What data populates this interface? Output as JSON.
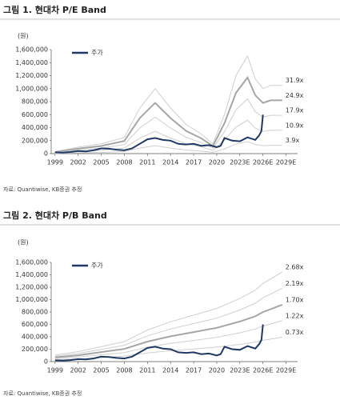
{
  "chart_data": [
    {
      "type": "line",
      "title": "그림 1. 현대차 P/E Band",
      "y_label": "(원)",
      "note": "자료: Quantiwise, KB증권 추정",
      "xlim": [
        1998.5,
        2030.5
      ],
      "ylim": [
        0,
        1600000
      ],
      "xticks": [
        1999,
        2002,
        2005,
        2008,
        2011,
        2014,
        2017,
        2020,
        {
          "value": 2023,
          "label": "2023E"
        },
        {
          "value": 2026,
          "label": "2026E"
        },
        {
          "value": 2029,
          "label": "2029E"
        }
      ],
      "yticks": [
        0,
        {
          "value": 200000,
          "label": "200,000"
        },
        {
          "value": 400000,
          "label": "400,000"
        },
        {
          "value": 600000,
          "label": "600,000"
        },
        {
          "value": 800000,
          "label": "800,000"
        },
        {
          "value": 1000000,
          "label": "1,000,000"
        },
        {
          "value": 1200000,
          "label": "1,200,000"
        },
        {
          "value": 1400000,
          "label": "1,400,000"
        },
        {
          "value": 1600000,
          "label": "1,600,000"
        }
      ],
      "legend": "upper left",
      "series": [
        {
          "name": "31.9x",
          "color": "#cfcfcf",
          "x": [
            1999,
            2002,
            2005,
            2008,
            2010,
            2012,
            2014,
            2016,
            2018,
            2019.5,
            2021,
            2022.5,
            2024,
            2025,
            2026,
            2027,
            2028.5
          ],
          "values": [
            30000,
            100000,
            150000,
            250000,
            700000,
            1000000,
            700000,
            450000,
            300000,
            150000,
            600000,
            1200000,
            1500000,
            1150000,
            1000000,
            1050000,
            1050000
          ]
        },
        {
          "name": "24.9x",
          "color": "#a6a6a6",
          "x": [
            1999,
            2002,
            2005,
            2008,
            2010,
            2012,
            2014,
            2016,
            2018,
            2019.5,
            2021,
            2022.5,
            2024,
            2025,
            2026,
            2027,
            2028.5
          ],
          "values": [
            23000,
            78000,
            117000,
            195000,
            546000,
            780000,
            546000,
            351000,
            234000,
            117000,
            468000,
            936000,
            1170000,
            897000,
            780000,
            820000,
            820000
          ]
        },
        {
          "name": "17.9x",
          "color": "#cfcfcf",
          "x": [
            1999,
            2002,
            2005,
            2008,
            2010,
            2012,
            2014,
            2016,
            2018,
            2019.5,
            2021,
            2022.5,
            2024,
            2025,
            2026,
            2027,
            2028.5
          ],
          "values": [
            17000,
            56000,
            84000,
            140000,
            393000,
            561000,
            393000,
            252000,
            168000,
            84000,
            337000,
            673000,
            842000,
            645000,
            561000,
            589000,
            589000
          ]
        },
        {
          "name": "10.9x",
          "color": "#cfcfcf",
          "x": [
            1999,
            2002,
            2005,
            2008,
            2010,
            2012,
            2014,
            2016,
            2018,
            2019.5,
            2021,
            2022.5,
            2024,
            2025,
            2026,
            2027,
            2028.5
          ],
          "values": [
            10000,
            34000,
            51000,
            86000,
            239000,
            342000,
            239000,
            154000,
            103000,
            51000,
            205000,
            410000,
            513000,
            393000,
            342000,
            359000,
            359000
          ]
        },
        {
          "name": "3.9x",
          "color": "#cfcfcf",
          "x": [
            1999,
            2002,
            2005,
            2008,
            2010,
            2012,
            2014,
            2016,
            2018,
            2019.5,
            2021,
            2022.5,
            2024,
            2025,
            2026,
            2027,
            2028.5
          ],
          "values": [
            4000,
            12000,
            18000,
            31000,
            85000,
            122000,
            85000,
            55000,
            37000,
            18000,
            73000,
            146000,
            183000,
            140000,
            122000,
            128000,
            128000
          ]
        },
        {
          "name": "주가",
          "color": "#1f3864",
          "legend": true,
          "x": [
            1999,
            2000,
            2001,
            2002,
            2003,
            2004,
            2005,
            2006,
            2007,
            2008,
            2009,
            2010,
            2011,
            2012,
            2013,
            2014,
            2015,
            2016,
            2017,
            2018,
            2019,
            2020,
            2020.5,
            2021,
            2022,
            2023,
            2024,
            2025,
            2025.5,
            2025.8,
            2026
          ],
          "values": [
            20000,
            15000,
            25000,
            40000,
            35000,
            50000,
            80000,
            75000,
            60000,
            50000,
            80000,
            150000,
            220000,
            240000,
            210000,
            200000,
            150000,
            140000,
            150000,
            120000,
            130000,
            100000,
            120000,
            240000,
            200000,
            190000,
            250000,
            210000,
            280000,
            350000,
            600000
          ]
        }
      ]
    },
    {
      "type": "line",
      "title": "그림 2. 현대차 P/B Band",
      "y_label": "(원)",
      "note": "자료: Quantiwise, KB증권 추정",
      "xlim": [
        1998.5,
        2030.5
      ],
      "ylim": [
        0,
        1600000
      ],
      "xticks": [
        1999,
        2002,
        2005,
        2008,
        2011,
        2014,
        2017,
        2020,
        {
          "value": 2023,
          "label": "2023E"
        },
        {
          "value": 2026,
          "label": "2026E"
        },
        {
          "value": 2029,
          "label": "2029E"
        }
      ],
      "yticks": [
        0,
        {
          "value": 200000,
          "label": "200,000"
        },
        {
          "value": 400000,
          "label": "400,000"
        },
        {
          "value": 600000,
          "label": "600,000"
        },
        {
          "value": 800000,
          "label": "800,000"
        },
        {
          "value": 1000000,
          "label": "1,000,000"
        },
        {
          "value": 1200000,
          "label": "1,200,000"
        },
        {
          "value": 1400000,
          "label": "1,400,000"
        },
        {
          "value": 1600000,
          "label": "1,600,000"
        }
      ],
      "legend": "upper left",
      "series": [
        {
          "name": "2.68x",
          "color": "#cfcfcf",
          "x": [
            1999,
            2002,
            2005,
            2008,
            2011,
            2014,
            2017,
            2020,
            2023,
            2025,
            2026,
            2028.5
          ],
          "values": [
            107000,
            161000,
            241000,
            322000,
            509000,
            643000,
            750000,
            858000,
            1018000,
            1152000,
            1260000,
            1447000
          ]
        },
        {
          "name": "2.19x",
          "color": "#cfcfcf",
          "x": [
            1999,
            2002,
            2005,
            2008,
            2011,
            2014,
            2017,
            2020,
            2023,
            2025,
            2026,
            2028.5
          ],
          "values": [
            88000,
            131000,
            197000,
            263000,
            416000,
            526000,
            613000,
            701000,
            832000,
            942000,
            1029000,
            1183000
          ]
        },
        {
          "name": "1.70x",
          "color": "#a6a6a6",
          "x": [
            1999,
            2002,
            2005,
            2008,
            2011,
            2014,
            2017,
            2020,
            2023,
            2025,
            2026,
            2028.5
          ],
          "values": [
            68000,
            102000,
            153000,
            204000,
            323000,
            408000,
            476000,
            544000,
            646000,
            731000,
            799000,
            918000
          ]
        },
        {
          "name": "1.22x",
          "color": "#cfcfcf",
          "x": [
            1999,
            2002,
            2005,
            2008,
            2011,
            2014,
            2017,
            2020,
            2023,
            2025,
            2026,
            2028.5
          ],
          "values": [
            49000,
            73000,
            110000,
            146000,
            232000,
            293000,
            342000,
            390000,
            464000,
            525000,
            573000,
            659000
          ]
        },
        {
          "name": "0.73x",
          "color": "#cfcfcf",
          "x": [
            1999,
            2002,
            2005,
            2008,
            2011,
            2014,
            2017,
            2020,
            2023,
            2025,
            2026,
            2028.5
          ],
          "values": [
            29000,
            44000,
            66000,
            88000,
            139000,
            175000,
            204000,
            234000,
            277000,
            314000,
            343000,
            394000
          ]
        },
        {
          "name": "주가",
          "color": "#1f3864",
          "legend": true,
          "x": [
            1999,
            2000,
            2001,
            2002,
            2003,
            2004,
            2005,
            2006,
            2007,
            2008,
            2009,
            2010,
            2011,
            2012,
            2013,
            2014,
            2015,
            2016,
            2017,
            2018,
            2019,
            2020,
            2020.5,
            2021,
            2022,
            2023,
            2024,
            2025,
            2025.5,
            2025.8,
            2026
          ],
          "values": [
            20000,
            15000,
            25000,
            40000,
            35000,
            50000,
            80000,
            75000,
            60000,
            50000,
            80000,
            150000,
            220000,
            240000,
            210000,
            200000,
            150000,
            140000,
            150000,
            120000,
            130000,
            100000,
            120000,
            240000,
            200000,
            190000,
            250000,
            210000,
            280000,
            350000,
            600000
          ]
        }
      ]
    }
  ]
}
